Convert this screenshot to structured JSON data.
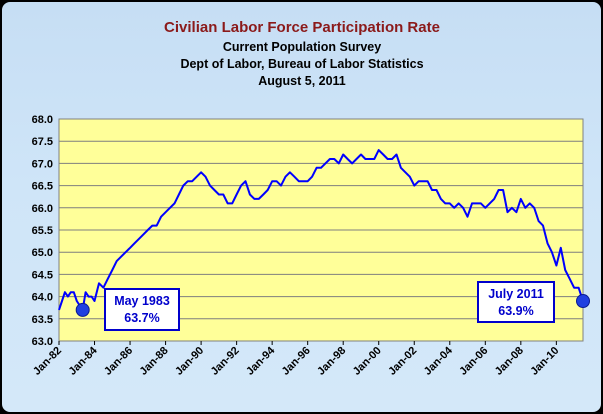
{
  "chart_data": {
    "type": "line",
    "title": "Civilian Labor Force Participation Rate",
    "subtitles": [
      "Current Population Survey",
      "Dept of Labor, Bureau of Labor Statistics",
      "August 5, 2011"
    ],
    "xlabel": "",
    "ylabel": "",
    "ylim": [
      63.0,
      68.0
    ],
    "yticks": [
      "63.0",
      "63.5",
      "64.0",
      "64.5",
      "65.0",
      "65.5",
      "66.0",
      "66.5",
      "67.0",
      "67.5",
      "68.0"
    ],
    "xlim": [
      "1982-01",
      "2011-07"
    ],
    "xtick_labels": [
      "Jan-82",
      "Jan-84",
      "Jan-86",
      "Jan-88",
      "Jan-90",
      "Jan-92",
      "Jan-94",
      "Jan-96",
      "Jan-98",
      "Jan-00",
      "Jan-02",
      "Jan-04",
      "Jan-06",
      "Jan-08",
      "Jan-10"
    ],
    "grid": "horizontal",
    "line_color": "#0000ff",
    "plot_background": "#ffff99",
    "series": [
      {
        "points": [
          [
            "1982-01",
            63.7
          ],
          [
            "1982-03",
            63.9
          ],
          [
            "1982-05",
            64.1
          ],
          [
            "1982-07",
            64.0
          ],
          [
            "1982-09",
            64.1
          ],
          [
            "1982-11",
            64.1
          ],
          [
            "1983-01",
            63.9
          ],
          [
            "1983-03",
            63.8
          ],
          [
            "1983-05",
            63.7
          ],
          [
            "1983-07",
            64.1
          ],
          [
            "1983-09",
            64.0
          ],
          [
            "1983-11",
            64.0
          ],
          [
            "1984-01",
            63.9
          ],
          [
            "1984-04",
            64.3
          ],
          [
            "1984-07",
            64.2
          ],
          [
            "1984-10",
            64.4
          ],
          [
            "1985-01",
            64.6
          ],
          [
            "1985-04",
            64.8
          ],
          [
            "1985-07",
            64.9
          ],
          [
            "1985-10",
            65.0
          ],
          [
            "1986-01",
            65.1
          ],
          [
            "1986-04",
            65.2
          ],
          [
            "1986-07",
            65.3
          ],
          [
            "1986-10",
            65.4
          ],
          [
            "1987-01",
            65.5
          ],
          [
            "1987-04",
            65.6
          ],
          [
            "1987-07",
            65.6
          ],
          [
            "1987-10",
            65.8
          ],
          [
            "1988-01",
            65.9
          ],
          [
            "1988-04",
            66.0
          ],
          [
            "1988-07",
            66.1
          ],
          [
            "1988-10",
            66.3
          ],
          [
            "1989-01",
            66.5
          ],
          [
            "1989-04",
            66.6
          ],
          [
            "1989-07",
            66.6
          ],
          [
            "1989-10",
            66.7
          ],
          [
            "1990-01",
            66.8
          ],
          [
            "1990-04",
            66.7
          ],
          [
            "1990-07",
            66.5
          ],
          [
            "1990-10",
            66.4
          ],
          [
            "1991-01",
            66.3
          ],
          [
            "1991-04",
            66.3
          ],
          [
            "1991-07",
            66.1
          ],
          [
            "1991-10",
            66.1
          ],
          [
            "1992-01",
            66.3
          ],
          [
            "1992-04",
            66.5
          ],
          [
            "1992-07",
            66.6
          ],
          [
            "1992-10",
            66.3
          ],
          [
            "1993-01",
            66.2
          ],
          [
            "1993-04",
            66.2
          ],
          [
            "1993-07",
            66.3
          ],
          [
            "1993-10",
            66.4
          ],
          [
            "1994-01",
            66.6
          ],
          [
            "1994-04",
            66.6
          ],
          [
            "1994-07",
            66.5
          ],
          [
            "1994-10",
            66.7
          ],
          [
            "1995-01",
            66.8
          ],
          [
            "1995-04",
            66.7
          ],
          [
            "1995-07",
            66.6
          ],
          [
            "1995-10",
            66.6
          ],
          [
            "1996-01",
            66.6
          ],
          [
            "1996-04",
            66.7
          ],
          [
            "1996-07",
            66.9
          ],
          [
            "1996-10",
            66.9
          ],
          [
            "1997-01",
            67.0
          ],
          [
            "1997-04",
            67.1
          ],
          [
            "1997-07",
            67.1
          ],
          [
            "1997-10",
            67.0
          ],
          [
            "1998-01",
            67.2
          ],
          [
            "1998-04",
            67.1
          ],
          [
            "1998-07",
            67.0
          ],
          [
            "1998-10",
            67.1
          ],
          [
            "1999-01",
            67.2
          ],
          [
            "1999-04",
            67.1
          ],
          [
            "1999-07",
            67.1
          ],
          [
            "1999-10",
            67.1
          ],
          [
            "2000-01",
            67.3
          ],
          [
            "2000-04",
            67.2
          ],
          [
            "2000-07",
            67.1
          ],
          [
            "2000-10",
            67.1
          ],
          [
            "2001-01",
            67.2
          ],
          [
            "2001-04",
            66.9
          ],
          [
            "2001-07",
            66.8
          ],
          [
            "2001-10",
            66.7
          ],
          [
            "2002-01",
            66.5
          ],
          [
            "2002-04",
            66.6
          ],
          [
            "2002-07",
            66.6
          ],
          [
            "2002-10",
            66.6
          ],
          [
            "2003-01",
            66.4
          ],
          [
            "2003-04",
            66.4
          ],
          [
            "2003-07",
            66.2
          ],
          [
            "2003-10",
            66.1
          ],
          [
            "2004-01",
            66.1
          ],
          [
            "2004-04",
            66.0
          ],
          [
            "2004-07",
            66.1
          ],
          [
            "2004-10",
            66.0
          ],
          [
            "2005-01",
            65.8
          ],
          [
            "2005-04",
            66.1
          ],
          [
            "2005-07",
            66.1
          ],
          [
            "2005-10",
            66.1
          ],
          [
            "2006-01",
            66.0
          ],
          [
            "2006-04",
            66.1
          ],
          [
            "2006-07",
            66.2
          ],
          [
            "2006-10",
            66.4
          ],
          [
            "2007-01",
            66.4
          ],
          [
            "2007-04",
            65.9
          ],
          [
            "2007-07",
            66.0
          ],
          [
            "2007-10",
            65.9
          ],
          [
            "2008-01",
            66.2
          ],
          [
            "2008-04",
            66.0
          ],
          [
            "2008-07",
            66.1
          ],
          [
            "2008-10",
            66.0
          ],
          [
            "2009-01",
            65.7
          ],
          [
            "2009-04",
            65.6
          ],
          [
            "2009-07",
            65.2
          ],
          [
            "2009-10",
            65.0
          ],
          [
            "2010-01",
            64.7
          ],
          [
            "2010-04",
            65.1
          ],
          [
            "2010-07",
            64.6
          ],
          [
            "2010-10",
            64.4
          ],
          [
            "2011-01",
            64.2
          ],
          [
            "2011-04",
            64.2
          ],
          [
            "2011-07",
            63.9
          ]
        ]
      }
    ],
    "markers": [
      {
        "date": "1983-05",
        "value": 63.7
      },
      {
        "date": "2011-07",
        "value": 63.9
      }
    ],
    "annotations": [
      {
        "line1": "May 1983",
        "line2": "63.7%"
      },
      {
        "line1": "July 2011",
        "line2": "63.9%"
      }
    ]
  }
}
